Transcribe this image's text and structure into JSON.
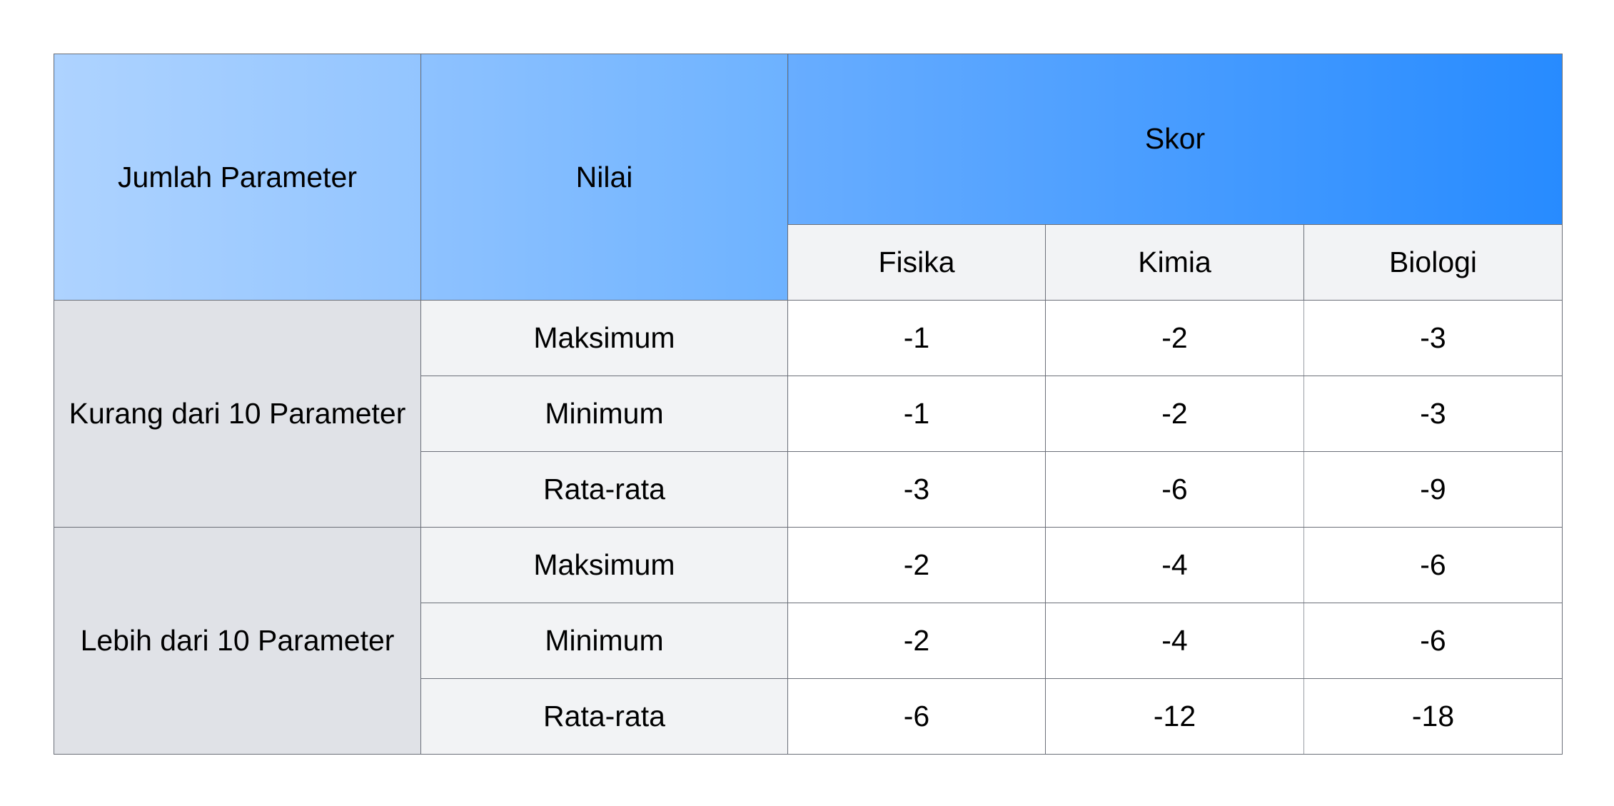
{
  "table": {
    "headers": {
      "jumlah_parameter": "Jumlah Parameter",
      "nilai": "Nilai",
      "skor": "Skor",
      "subjects": [
        "Fisika",
        "Kimia",
        "Biologi"
      ]
    },
    "groups": [
      {
        "label": "Kurang dari 10 Parameter",
        "rows": [
          {
            "nilai": "Maksimum",
            "values": [
              "-1",
              "-2",
              "-3"
            ]
          },
          {
            "nilai": "Minimum",
            "values": [
              "-1",
              "-2",
              "-3"
            ]
          },
          {
            "nilai": "Rata-rata",
            "values": [
              "-3",
              "-6",
              "-9"
            ]
          }
        ]
      },
      {
        "label": "Lebih dari 10 Parameter",
        "rows": [
          {
            "nilai": "Maksimum",
            "values": [
              "-2",
              "-4",
              "-6"
            ]
          },
          {
            "nilai": "Minimum",
            "values": [
              "-2",
              "-4",
              "-6"
            ]
          },
          {
            "nilai": "Rata-rata",
            "values": [
              "-6",
              "-12",
              "-18"
            ]
          }
        ]
      }
    ]
  },
  "colors": {
    "header_light": "#aed3ff",
    "header_mid": "#6db2ff",
    "header_dark": "#278bff",
    "group_bg": "#e0e2e7",
    "label_bg": "#f2f3f5",
    "border": "#6b6f78"
  }
}
